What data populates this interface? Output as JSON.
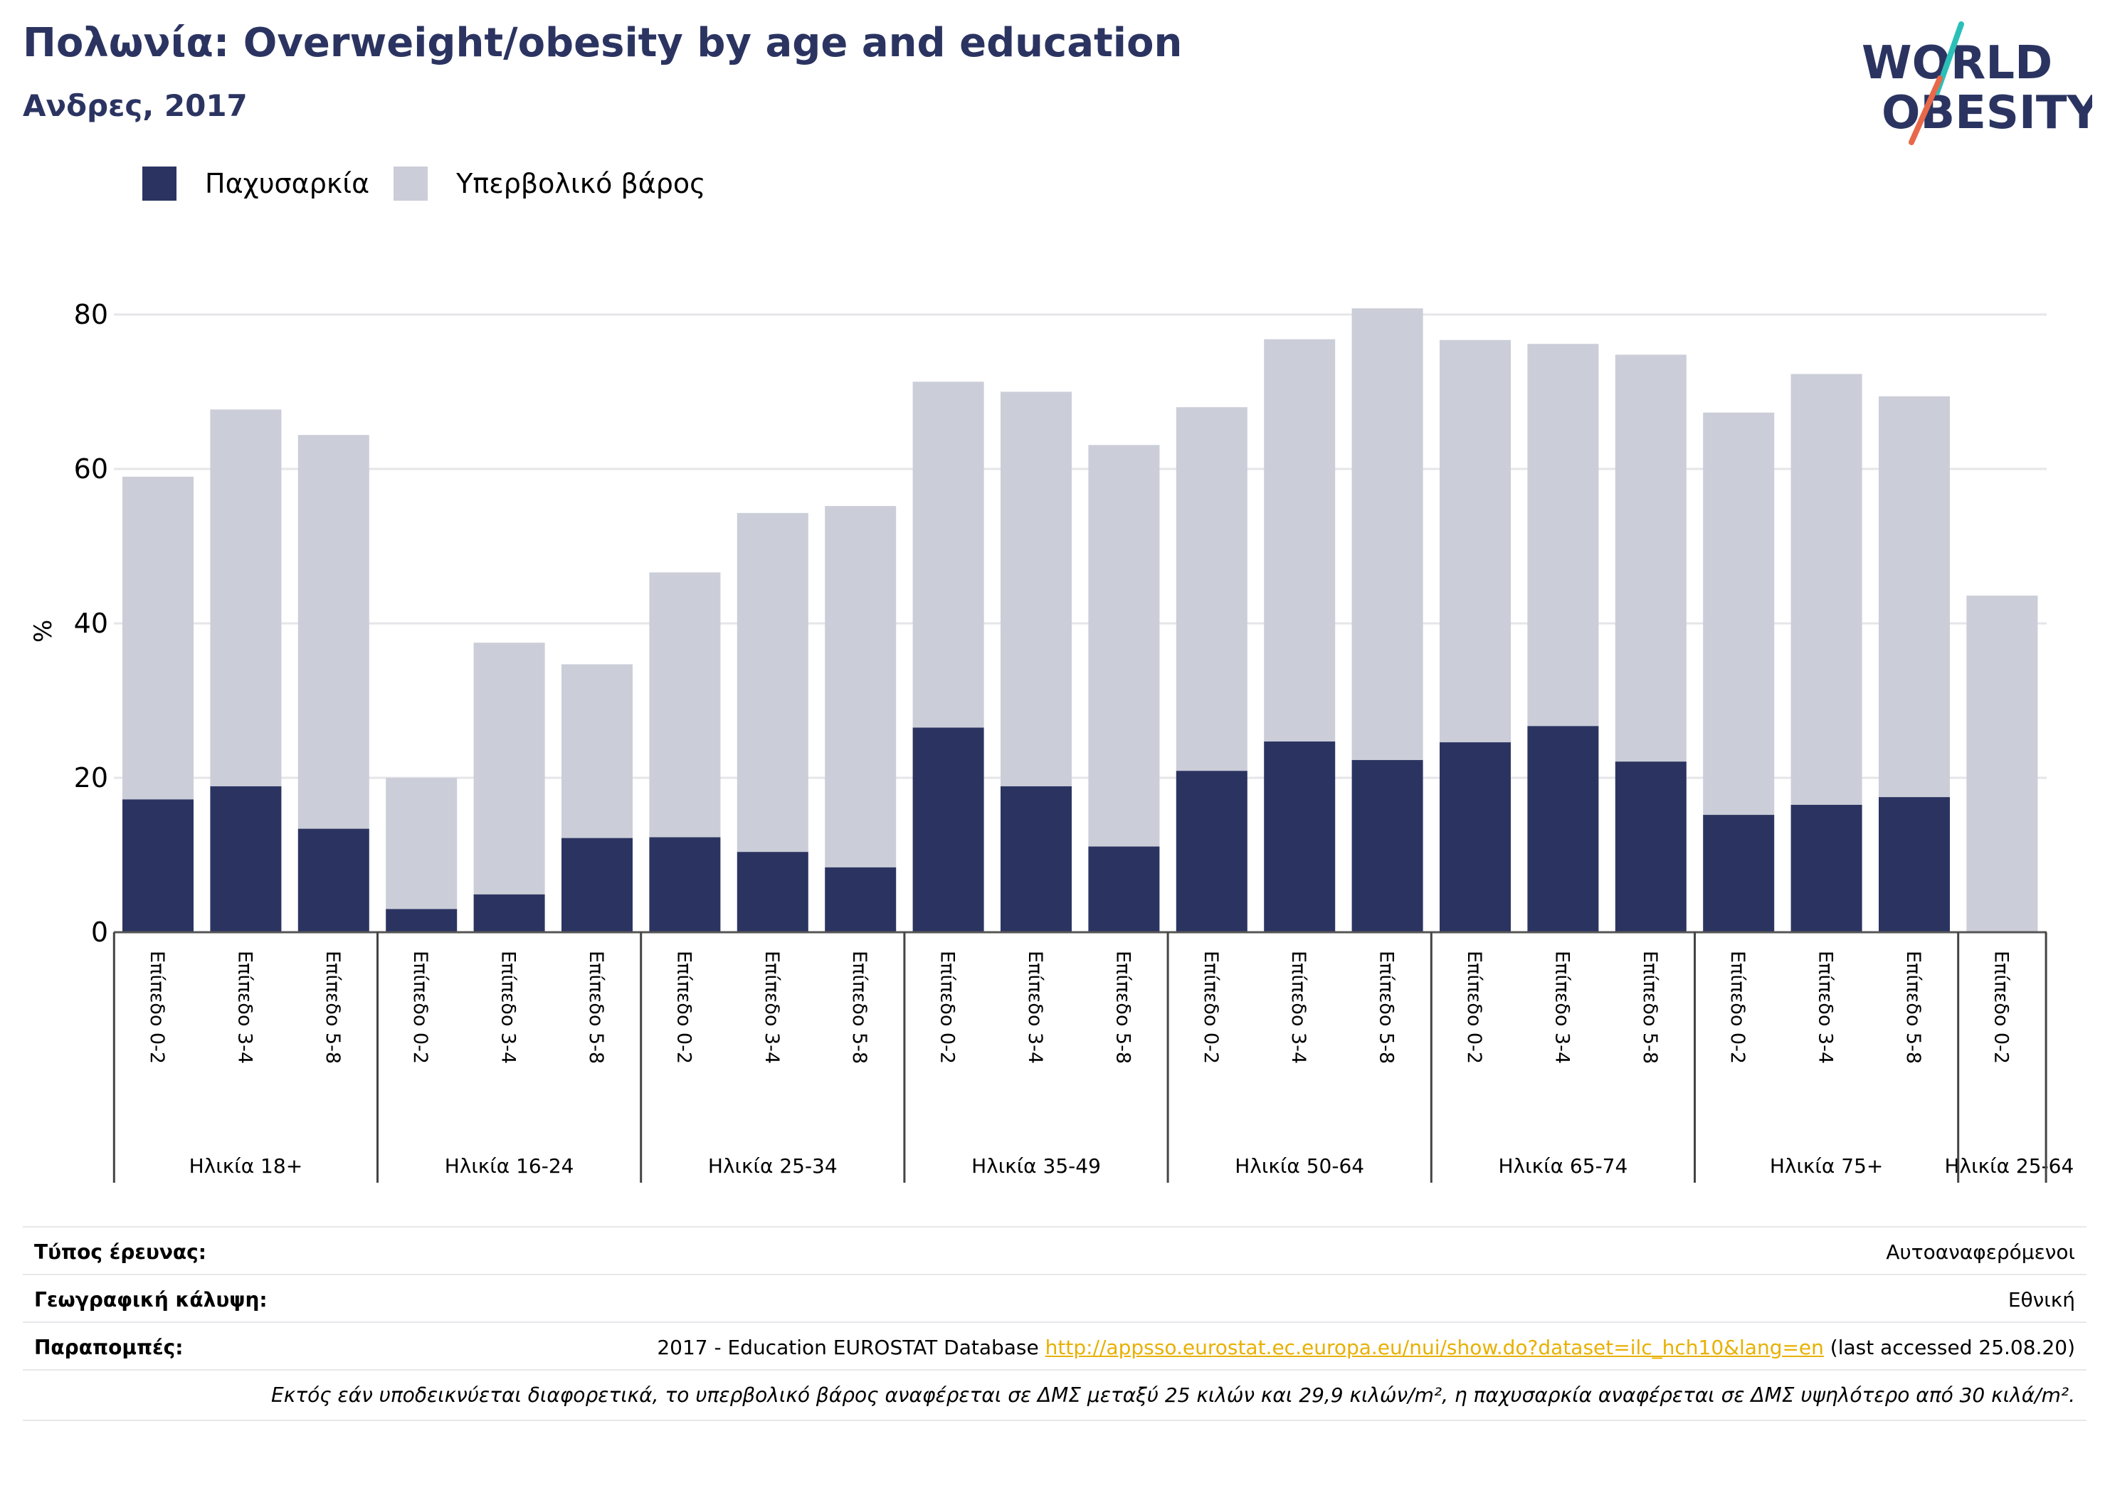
{
  "header": {
    "title": "Πολωνία: Overweight/obesity by age and education",
    "subtitle": "Ανδρες, 2017"
  },
  "logo": {
    "line1": "WORLD",
    "line2": "OBESITY"
  },
  "colors": {
    "obesity": "#2b3461",
    "overweight": "#cbcdd8",
    "title": "#2b3461",
    "link": "#e8b000",
    "grid": "#e6e6ea",
    "logo_teal": "#2bbfb8",
    "logo_orange": "#e8684a"
  },
  "chart_data": {
    "type": "bar",
    "stacked": true,
    "ylabel": "%",
    "ylim": [
      0,
      85
    ],
    "yticks": [
      0,
      20,
      40,
      60,
      80
    ],
    "grid": true,
    "legend_position": "top-left",
    "legend": [
      "Παχυσαρκία",
      "Υπερβολικό βάρος"
    ],
    "groups": [
      {
        "label": "Ηλικία 18+",
        "categories": [
          "Επίπεδο 0-2",
          "Επίπεδο 3-4",
          "Επίπεδο 5-8"
        ]
      },
      {
        "label": "Ηλικία 16-24",
        "categories": [
          "Επίπεδο 0-2",
          "Επίπεδο 3-4",
          "Επίπεδο 5-8"
        ]
      },
      {
        "label": "Ηλικία 25-34",
        "categories": [
          "Επίπεδο 0-2",
          "Επίπεδο 3-4",
          "Επίπεδο 5-8"
        ]
      },
      {
        "label": "Ηλικία 35-49",
        "categories": [
          "Επίπεδο 0-2",
          "Επίπεδο 3-4",
          "Επίπεδο 5-8"
        ]
      },
      {
        "label": "Ηλικία 50-64",
        "categories": [
          "Επίπεδο 0-2",
          "Επίπεδο 3-4",
          "Επίπεδο 5-8"
        ]
      },
      {
        "label": "Ηλικία 65-74",
        "categories": [
          "Επίπεδο 0-2",
          "Επίπεδο 3-4",
          "Επίπεδο 5-8"
        ]
      },
      {
        "label": "Ηλικία 75+",
        "categories": [
          "Επίπεδο 0-2",
          "Επίπεδο 3-4",
          "Επίπεδο 5-8"
        ]
      },
      {
        "label": "Ηλικία 25-64",
        "categories": [
          "Επίπεδο 0-2"
        ]
      }
    ],
    "series": [
      {
        "name": "Παχυσαρκία",
        "values": [
          17.2,
          18.9,
          13.4,
          3.0,
          4.9,
          12.2,
          12.3,
          10.4,
          8.4,
          26.5,
          18.9,
          11.1,
          20.9,
          24.7,
          22.3,
          24.6,
          26.7,
          22.1,
          15.2,
          16.5,
          17.5,
          0
        ]
      },
      {
        "name": "Υπερβολικό βάρος",
        "values": [
          41.8,
          48.8,
          51.0,
          17.0,
          32.6,
          22.5,
          34.3,
          43.9,
          46.8,
          44.8,
          51.1,
          52.0,
          47.1,
          52.1,
          58.5,
          52.1,
          49.5,
          52.7,
          52.1,
          55.8,
          51.9,
          43.6
        ]
      }
    ]
  },
  "info": {
    "survey_label": "Τύπος έρευνας:",
    "survey_value": "Αυτοαναφερόμενοι",
    "coverage_label": "Γεωγραφική κάλυψη:",
    "coverage_value": "Εθνική",
    "refs_label": "Παραπομπές:",
    "refs_prefix": "2017 - Education EUROSTAT Database ",
    "refs_link": "http://appsso.eurostat.ec.europa.eu/nui/show.do?dataset=ilc_hch10&lang=en",
    "refs_suffix": " (last accessed 25.08.20)",
    "note": "Εκτός εάν υποδεικνύεται διαφορετικά, το υπερβολικό βάρος αναφέρεται σε ΔΜΣ μεταξύ 25 κιλών και 29,9 κιλών/m², η παχυσαρκία αναφέρεται σε ΔΜΣ υψηλότερο από 30 κιλά/m²."
  }
}
